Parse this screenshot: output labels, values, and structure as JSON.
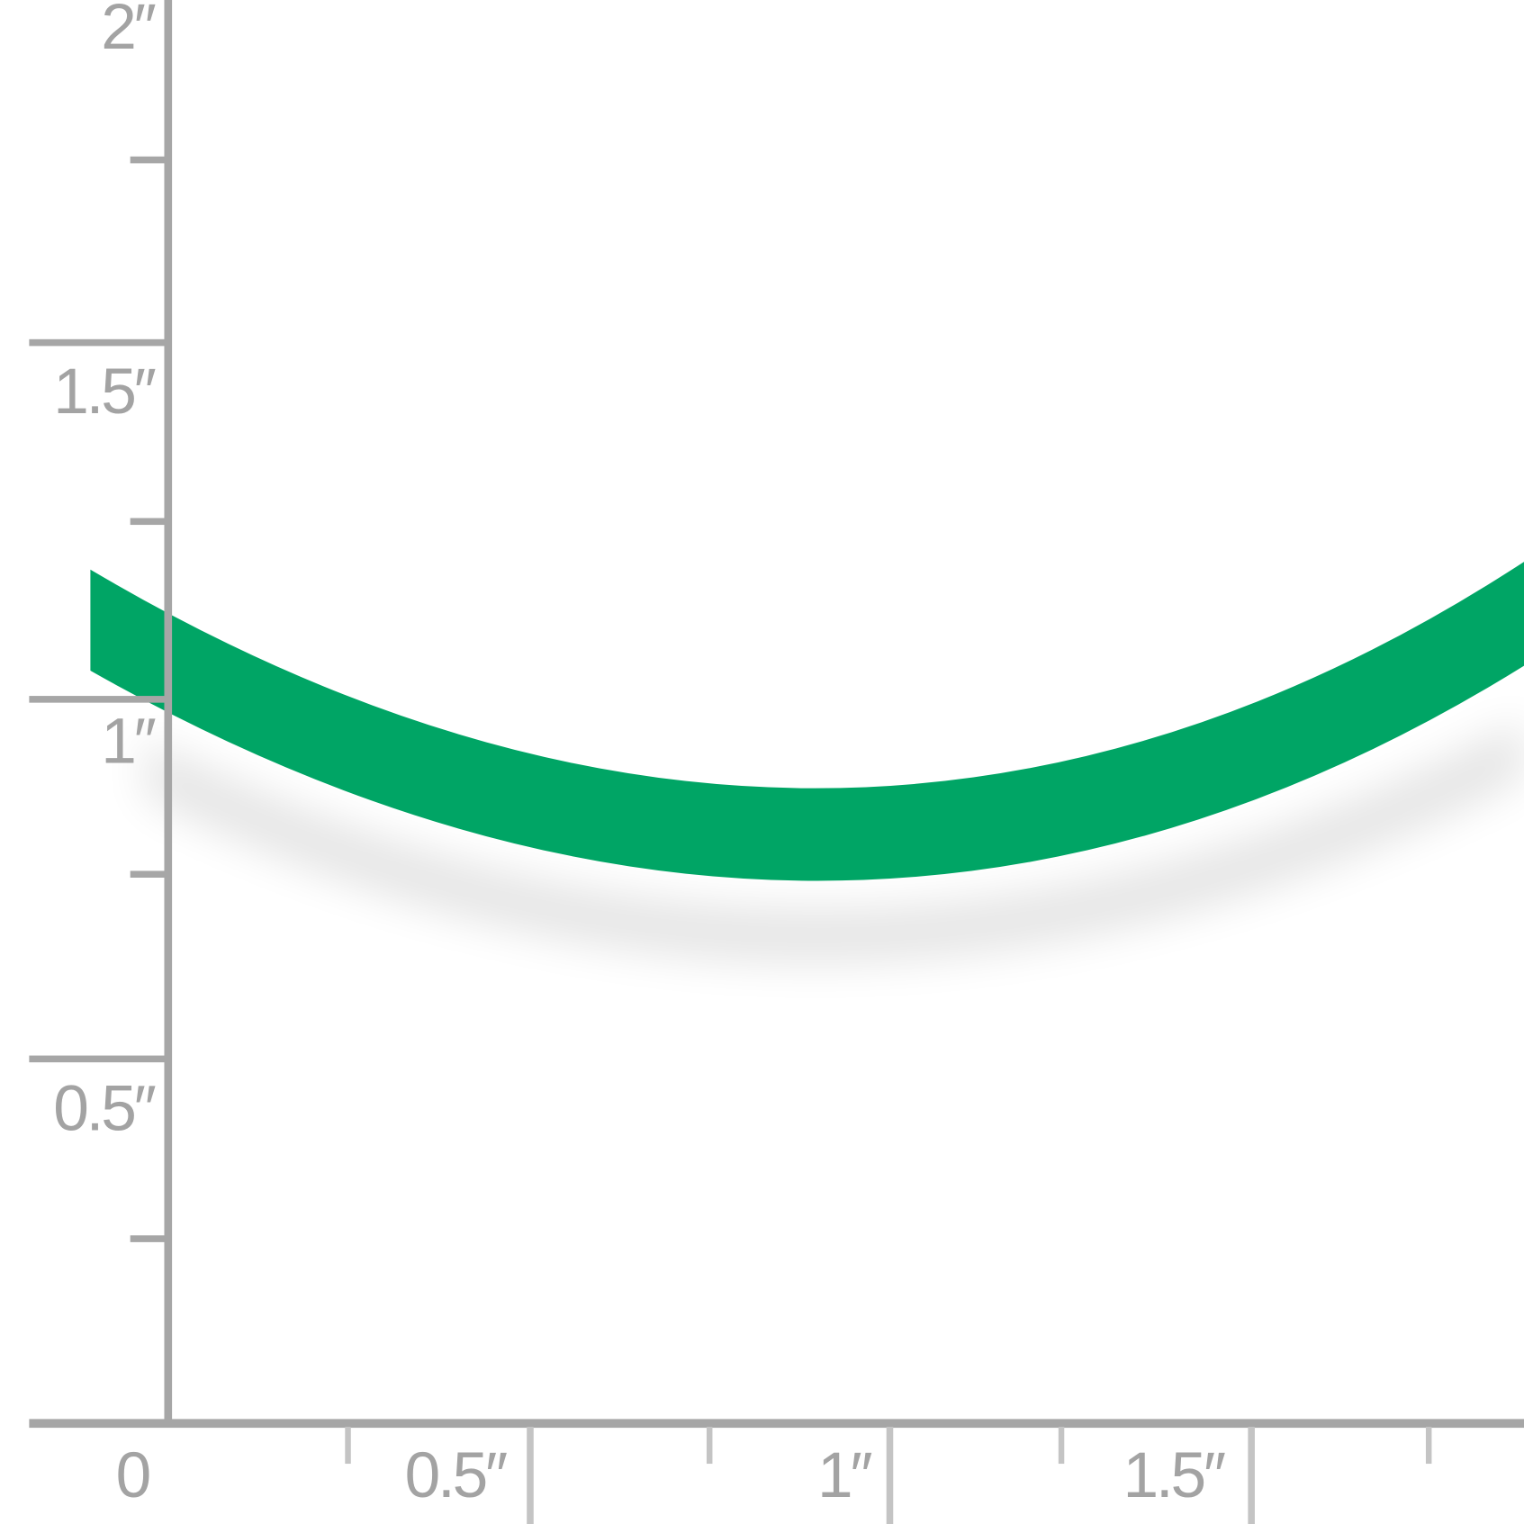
{
  "product": {
    "name": "green rubber cord",
    "color": "#00a565"
  },
  "ruler": {
    "unit": "inch",
    "axis_color": "#a6a6a6",
    "y_labels": [
      "2″",
      "1.5″",
      "1″",
      "0.5″"
    ],
    "x_labels": [
      "0",
      "0.5″",
      "1″",
      "1.5″"
    ]
  }
}
